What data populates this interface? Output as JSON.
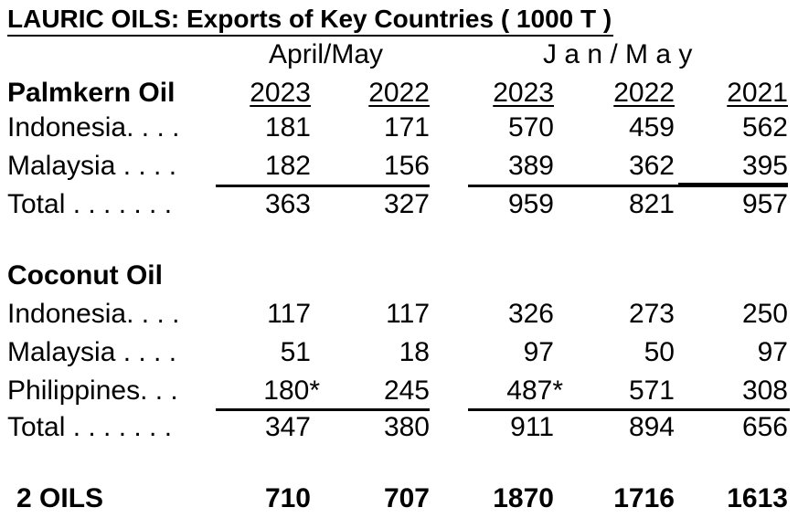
{
  "title": "LAURIC OILS:  Exports of Key Countries  ( 1000 T )",
  "group_headers": {
    "aprmay": "April/May",
    "janmay": "J a n / M a y"
  },
  "years": [
    "2023",
    "2022",
    "2023",
    "2022",
    "2021"
  ],
  "sections": [
    {
      "name": "Palmkern Oil",
      "rows": [
        {
          "label": "Indonesia. . . .",
          "values": [
            "181",
            "171",
            "570",
            "459",
            "562"
          ]
        },
        {
          "label": "Malaysia . . . .",
          "values": [
            "182",
            "156",
            "389",
            "362",
            "395"
          ]
        },
        {
          "label": "Total . . . . . . .",
          "values": [
            "363",
            "327",
            "959",
            "821",
            "957"
          ]
        }
      ]
    },
    {
      "name": "Coconut Oil",
      "rows": [
        {
          "label": "Indonesia. . . .",
          "values": [
            "117",
            "117",
            "326",
            "273",
            "250"
          ]
        },
        {
          "label": "Malaysia . . . .",
          "values": [
            "51",
            "18",
            "97",
            "50",
            "97"
          ]
        },
        {
          "label": "Philippines. . .",
          "values": [
            "180*",
            "245",
            "487*",
            "571",
            "308"
          ]
        },
        {
          "label": "Total . . . . . . .",
          "values": [
            "347",
            "380",
            "911",
            "894",
            "656"
          ]
        }
      ]
    }
  ],
  "grand_total": {
    "label": "2 OILS",
    "values": [
      "710",
      "707",
      "1870",
      "1716",
      "1613"
    ]
  }
}
